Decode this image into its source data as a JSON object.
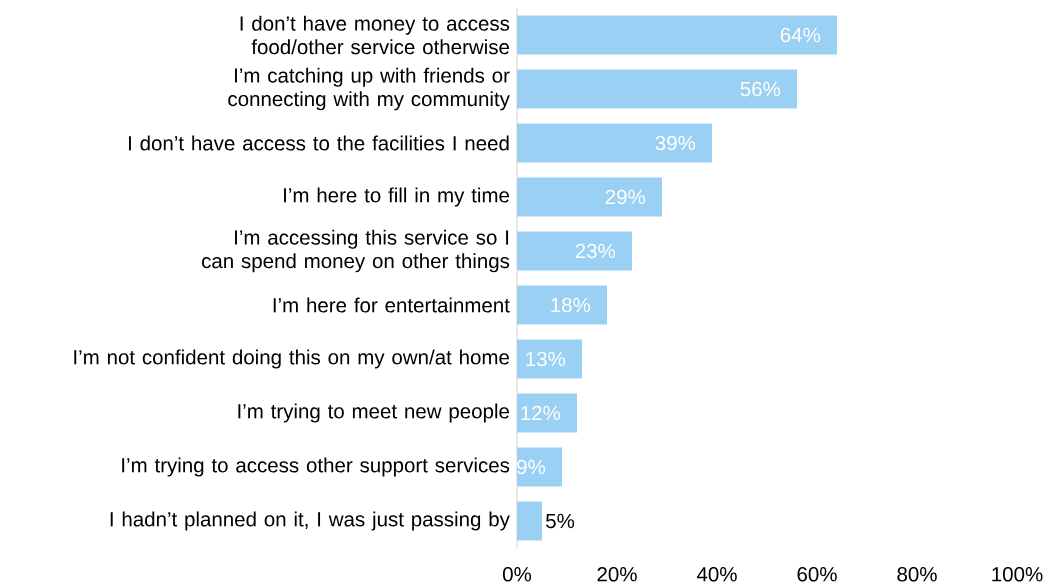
{
  "chart_data": {
    "type": "bar",
    "orientation": "horizontal",
    "categories": [
      "I don’t have money to access food/other service otherwise",
      "I’m catching up with friends or connecting with my community",
      "I don’t have access to the facilities I need",
      "I’m here to fill in my time",
      "I’m accessing this service so I can spend money on other things",
      "I’m here for entertainment",
      "I’m not confident doing this on my own/at home",
      "I’m trying to meet new people",
      "I’m trying to access other support services",
      "I hadn’t planned on it, I was just passing by"
    ],
    "values": [
      64,
      56,
      39,
      29,
      23,
      18,
      13,
      12,
      9,
      5
    ],
    "value_labels": [
      "64%",
      "56%",
      "39%",
      "29%",
      "23%",
      "18%",
      "13%",
      "12%",
      "9%",
      "5%"
    ],
    "color": "#99d0f3",
    "xlim": [
      0,
      100
    ],
    "xticks": [
      {
        "value": 0,
        "label": "0%"
      },
      {
        "value": 20,
        "label": "20%"
      },
      {
        "value": 40,
        "label": "40%"
      },
      {
        "value": 60,
        "label": "60%"
      },
      {
        "value": 80,
        "label": "80%"
      },
      {
        "value": 100,
        "label": "100%"
      }
    ],
    "grid": false
  }
}
